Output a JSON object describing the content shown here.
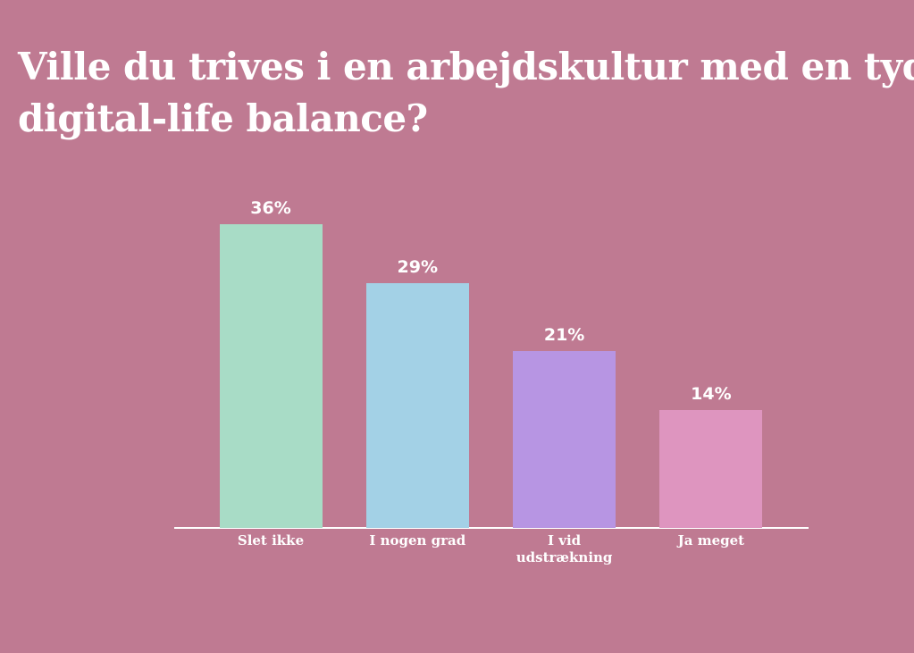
{
  "chart_data": {
    "type": "bar",
    "title": [
      "Ville du trives i en arbejdskultur med en tyde",
      "digital-life balance?"
    ],
    "categories": [
      "Slet ikke",
      "I nogen grad",
      "I vid udstrækning",
      "Ja meget"
    ],
    "values": [
      36,
      29,
      21,
      14
    ],
    "value_labels": [
      "36%",
      "29%",
      "21%",
      "14%"
    ],
    "colors": [
      "#a8dcc6",
      "#a3d1e6",
      "#b795e3",
      "#de95bf"
    ]
  }
}
